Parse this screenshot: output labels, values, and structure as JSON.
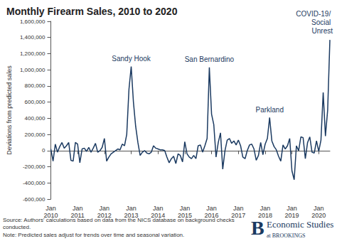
{
  "chart_data": {
    "type": "line",
    "title": "Monthly Firearm Sales, 2010 to 2020",
    "y_label": "Deviations from predicted sales",
    "color": "#1b3a61",
    "grid": false,
    "categories": [
      "Jan 2010",
      null,
      null,
      null,
      null,
      null,
      null,
      null,
      null,
      null,
      null,
      null,
      "Jan 2011",
      null,
      null,
      null,
      null,
      null,
      null,
      null,
      null,
      null,
      null,
      null,
      "Jan 2012",
      null,
      null,
      null,
      null,
      null,
      null,
      null,
      null,
      null,
      null,
      null,
      "Jan 2013",
      null,
      null,
      null,
      null,
      null,
      null,
      null,
      null,
      null,
      null,
      null,
      "Jan 2014",
      null,
      null,
      null,
      null,
      null,
      null,
      null,
      null,
      null,
      null,
      null,
      "Jan 2015",
      null,
      null,
      null,
      null,
      null,
      null,
      null,
      null,
      null,
      null,
      null,
      "Jan 2016",
      null,
      null,
      null,
      null,
      null,
      null,
      null,
      null,
      null,
      null,
      null,
      "Jan 2017",
      null,
      null,
      null,
      null,
      null,
      null,
      null,
      null,
      null,
      null,
      null,
      "Jan 2018",
      null,
      null,
      null,
      null,
      null,
      null,
      null,
      null,
      null,
      null,
      null,
      "Jan 2019",
      null,
      null,
      null,
      null,
      null,
      null,
      null,
      null,
      null,
      null,
      null,
      "Jan 2020",
      null,
      null,
      null,
      null,
      null
    ],
    "values": [
      20000,
      -130000,
      80000,
      -20000,
      50000,
      100000,
      30000,
      60000,
      100000,
      -120000,
      -130000,
      100000,
      80000,
      -150000,
      20000,
      30000,
      -10000,
      40000,
      -20000,
      30000,
      90000,
      -20000,
      0,
      40000,
      150000,
      -130000,
      -80000,
      -40000,
      -20000,
      0,
      20000,
      10000,
      80000,
      60000,
      200000,
      760000,
      1040000,
      600000,
      300000,
      100000,
      -60000,
      -20000,
      0,
      -30000,
      -40000,
      -20000,
      60000,
      30000,
      20000,
      10000,
      10000,
      0,
      -80000,
      -150000,
      -100000,
      -70000,
      -160000,
      -40000,
      -60000,
      -140000,
      110000,
      -40000,
      -80000,
      -100000,
      -60000,
      -100000,
      60000,
      70000,
      -20000,
      60000,
      150000,
      1030000,
      450000,
      320000,
      -80000,
      100000,
      220000,
      -230000,
      0,
      130000,
      150000,
      90000,
      120000,
      70000,
      130000,
      60000,
      -80000,
      -100000,
      0,
      70000,
      80000,
      20000,
      -120000,
      -60000,
      100000,
      -50000,
      80000,
      150000,
      410000,
      120000,
      50000,
      10000,
      -70000,
      -130000,
      70000,
      20000,
      60000,
      150000,
      -250000,
      -360000,
      60000,
      0,
      170000,
      160000,
      -100000,
      100000,
      170000,
      -20000,
      -30000,
      120000,
      -10000,
      130000,
      720000,
      180000,
      500000,
      1370000
    ],
    "ylim": [
      -600000,
      1600000
    ],
    "yticks": [
      {
        "value": -600000,
        "label": "-600,000"
      },
      {
        "value": -400000,
        "label": "-400,000"
      },
      {
        "value": -200000,
        "label": "-200,000"
      },
      0,
      {
        "value": 200000,
        "label": "200,000"
      },
      {
        "value": 400000,
        "label": "400,000"
      },
      {
        "value": 600000,
        "label": "600,000"
      },
      {
        "value": 800000,
        "label": "800,000"
      },
      {
        "value": 1000000,
        "label": "1,000,000"
      },
      {
        "value": 1200000,
        "label": "1,200,000"
      },
      {
        "value": 1400000,
        "label": "1,400,000"
      },
      {
        "value": 1600000,
        "label": "1,600,000"
      }
    ],
    "annotations": [
      {
        "text": "Sandy Hook",
        "y": 1040000
      },
      {
        "text": "San Bernardino",
        "y": 1030000
      },
      {
        "text": "Parkland",
        "y": 410000
      },
      {
        "text": "COVID-19/ Social Unrest",
        "y": 1370000
      }
    ],
    "source": "Source: Authors' calculations based on data from the NICS database on background checks conducted.",
    "note": "Note: Predicted sales adjust for trends over time and seasonal variation.",
    "branding": {
      "mark": "B",
      "name": "Economic Studies",
      "sub": "at BROOKINGS"
    }
  }
}
